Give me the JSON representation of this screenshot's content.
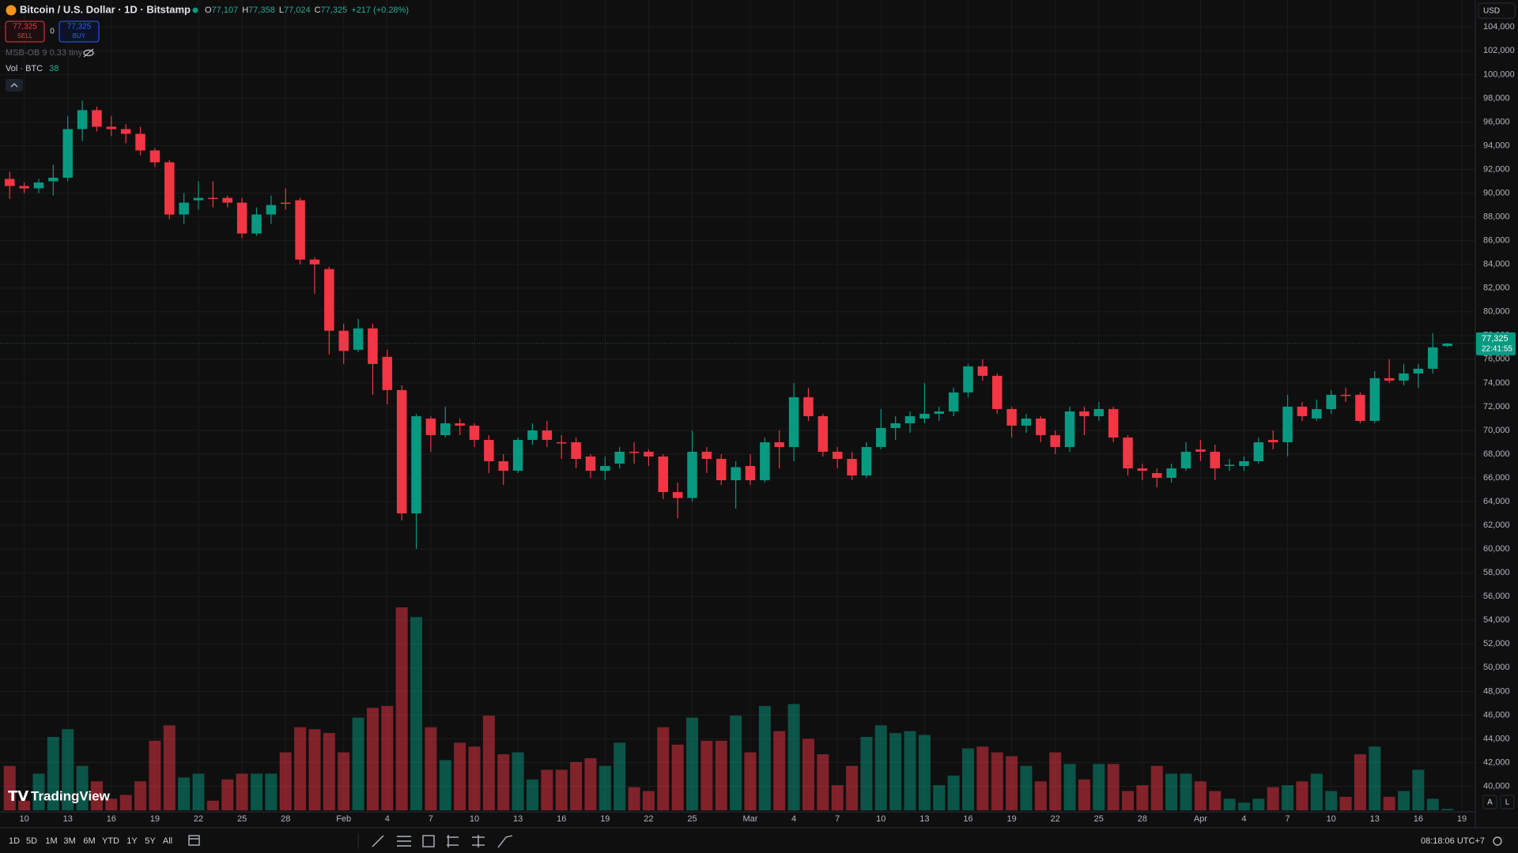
{
  "header": {
    "symbol": "Bitcoin / U.S. Dollar · 1D · Bitstamp",
    "ohlc": [
      {
        "key": "O",
        "text": "77,107"
      },
      {
        "key": "H",
        "text": "77,358"
      },
      {
        "key": "L",
        "text": "77,024"
      },
      {
        "key": "C",
        "text": "77,325"
      }
    ],
    "change": "+217 (+0.28%)",
    "sell_price": "77,325",
    "sell": "SELL",
    "spread": "0",
    "buy_price": "77,325",
    "buy": "BUY",
    "indicator": "MSB-OB 9 0.33 tiny",
    "currency": "USD"
  },
  "chart_data": {
    "type": "candlestick",
    "up_color": "#089981",
    "down_color": "#f23645",
    "grid": true,
    "categories": [
      null,
      "10",
      null,
      null,
      "13",
      null,
      null,
      "16",
      null,
      null,
      "19",
      null,
      null,
      "22",
      null,
      null,
      "25",
      null,
      null,
      "28",
      null,
      null,
      null,
      "Feb",
      null,
      null,
      "4",
      null,
      null,
      "7",
      null,
      null,
      "10",
      null,
      null,
      "13",
      null,
      null,
      "16",
      null,
      null,
      "19",
      null,
      null,
      "22",
      null,
      null,
      "25",
      null,
      null,
      null,
      "Mar",
      null,
      null,
      "4",
      null,
      null,
      "7",
      null,
      null,
      "10",
      null,
      null,
      "13",
      null,
      null,
      "16",
      null,
      null,
      "19",
      null,
      null,
      "22",
      null,
      null,
      "25",
      null,
      null,
      "28",
      null,
      null,
      null,
      "Apr",
      null,
      null,
      "4",
      null,
      null,
      "7",
      null,
      null,
      "10",
      null,
      null,
      "13",
      null,
      null,
      "16",
      null,
      null
    ],
    "future_categories": [
      "19"
    ],
    "ohlc": {
      "open": [
        91200,
        90600,
        90400,
        91000,
        91300,
        95400,
        97000,
        95600,
        95400,
        95000,
        93600,
        92600,
        88200,
        89400,
        89600,
        89600,
        89200,
        86600,
        88200,
        89200,
        89400,
        84400,
        83600,
        78400,
        76800,
        78600,
        76200,
        73400,
        63000,
        71000,
        69600,
        70600,
        70400,
        69200,
        67400,
        66600,
        69200,
        70000,
        69000,
        69000,
        67800,
        66600,
        67200,
        68200,
        68200,
        67800,
        64800,
        64300,
        68200,
        67600,
        65800,
        67000,
        65800,
        69000,
        68600,
        72800,
        71200,
        68200,
        67600,
        66200,
        68600,
        70200,
        70600,
        71000,
        71400,
        71600,
        73200,
        75400,
        74600,
        71800,
        70400,
        71000,
        69600,
        68600,
        71600,
        71200,
        71800,
        69400,
        66800,
        66400,
        66000,
        66800,
        68400,
        68200,
        67000,
        67000,
        67400,
        69200,
        69000,
        72000,
        71000,
        71800,
        73000,
        73000,
        70800,
        74400,
        74200,
        74800,
        75200,
        77107
      ],
      "high": [
        91800,
        90900,
        91200,
        92400,
        96500,
        97800,
        97300,
        96500,
        95800,
        95600,
        93800,
        92800,
        90000,
        91000,
        91000,
        89800,
        89600,
        88800,
        89800,
        90400,
        89600,
        84600,
        83800,
        79000,
        79400,
        79000,
        76800,
        73800,
        71400,
        71200,
        72000,
        71000,
        70600,
        69600,
        68000,
        69400,
        70600,
        70800,
        69600,
        69400,
        68000,
        67800,
        68600,
        69000,
        68400,
        68000,
        65600,
        70000,
        68600,
        68000,
        67400,
        68000,
        69400,
        70000,
        74000,
        73600,
        71400,
        68600,
        68200,
        69000,
        71800,
        71200,
        71600,
        74000,
        72000,
        73600,
        75600,
        76000,
        74800,
        72000,
        71400,
        71200,
        70000,
        72000,
        72000,
        72400,
        72000,
        69600,
        67200,
        66800,
        67200,
        69000,
        69200,
        68800,
        67600,
        67800,
        69400,
        70000,
        73000,
        72400,
        72600,
        73400,
        73600,
        73200,
        75000,
        76000,
        75600,
        75600,
        78200,
        77358
      ],
      "low": [
        89500,
        90000,
        90000,
        89800,
        91000,
        94400,
        95200,
        94800,
        94200,
        93200,
        92200,
        87800,
        87400,
        88600,
        88800,
        88800,
        86200,
        86400,
        87400,
        88600,
        84000,
        81500,
        76400,
        75600,
        76600,
        73000,
        72200,
        62400,
        60000,
        68200,
        69400,
        69600,
        68600,
        66400,
        65400,
        66400,
        68800,
        68600,
        67600,
        66800,
        66000,
        65800,
        66800,
        67200,
        67000,
        64200,
        62600,
        64000,
        66400,
        65400,
        63400,
        65400,
        65600,
        66800,
        67400,
        70800,
        67800,
        66800,
        65800,
        66000,
        68400,
        69200,
        69800,
        70600,
        70800,
        71200,
        72800,
        74200,
        71400,
        69400,
        69800,
        69000,
        68000,
        68200,
        69600,
        70800,
        69000,
        66200,
        65800,
        65200,
        65600,
        66600,
        67400,
        65800,
        66600,
        66600,
        67200,
        68400,
        67800,
        70800,
        70800,
        71400,
        72400,
        70600,
        70600,
        74000,
        73800,
        73600,
        74800,
        77024
      ],
      "close": [
        90600,
        90400,
        90900,
        91300,
        95400,
        97000,
        95600,
        95400,
        95000,
        93600,
        92600,
        88200,
        89200,
        89600,
        89500,
        89200,
        86600,
        88200,
        89000,
        89100,
        84400,
        84000,
        78400,
        76700,
        78600,
        75600,
        73400,
        63000,
        71200,
        69600,
        70600,
        70400,
        69200,
        67400,
        66600,
        69200,
        70000,
        69200,
        68900,
        67600,
        66600,
        67000,
        68200,
        68100,
        67800,
        64800,
        64300,
        68200,
        67600,
        65800,
        66900,
        65800,
        69000,
        68600,
        72800,
        71200,
        68200,
        67600,
        66200,
        68600,
        70200,
        70600,
        71200,
        71400,
        71600,
        73200,
        75400,
        74600,
        71800,
        70400,
        71000,
        69600,
        68600,
        71600,
        71200,
        71800,
        69400,
        66800,
        66600,
        66000,
        66800,
        68200,
        68200,
        66800,
        67100,
        67400,
        69000,
        69000,
        72000,
        71200,
        71800,
        73000,
        72900,
        70800,
        74400,
        74200,
        74800,
        75200,
        77000,
        77325
      ]
    },
    "volume": {
      "name": "Vol · BTC",
      "values": [
        1150,
        250,
        950,
        1900,
        2100,
        1150,
        750,
        300,
        400,
        750,
        1800,
        2200,
        850,
        950,
        250,
        800,
        950,
        950,
        950,
        1500,
        2150,
        2100,
        2000,
        1500,
        2400,
        2650,
        2700,
        5250,
        5000,
        2150,
        1300,
        1750,
        1650,
        2450,
        1450,
        1500,
        800,
        1050,
        1050,
        1250,
        1350,
        1150,
        1750,
        600,
        500,
        2150,
        1700,
        2400,
        1800,
        1800,
        2450,
        1500,
        2700,
        2050,
        2750,
        1850,
        1450,
        650,
        1150,
        1900,
        2200,
        2000,
        2050,
        1950,
        650,
        900,
        1600,
        1650,
        1500,
        1400,
        1150,
        750,
        1500,
        1200,
        800,
        1200,
        1200,
        500,
        650,
        1150,
        950,
        950,
        750,
        500,
        300,
        200,
        300,
        600,
        650,
        750,
        950,
        500,
        350,
        1450,
        1650,
        350,
        500,
        1050,
        300,
        38
      ]
    },
    "ylim": [
      40000,
      104000
    ],
    "yticks": [
      {
        "value": 40000,
        "label": "40,000"
      },
      {
        "value": 42000,
        "label": "42,000"
      },
      {
        "value": 44000,
        "label": "44,000"
      },
      {
        "value": 46000,
        "label": "46,000"
      },
      {
        "value": 48000,
        "label": "48,000"
      },
      {
        "value": 50000,
        "label": "50,000"
      },
      {
        "value": 52000,
        "label": "52,000"
      },
      {
        "value": 54000,
        "label": "54,000"
      },
      {
        "value": 56000,
        "label": "56,000"
      },
      {
        "value": 58000,
        "label": "58,000"
      },
      {
        "value": 60000,
        "label": "60,000"
      },
      {
        "value": 62000,
        "label": "62,000"
      },
      {
        "value": 64000,
        "label": "64,000"
      },
      {
        "value": 66000,
        "label": "66,000"
      },
      {
        "value": 68000,
        "label": "68,000"
      },
      {
        "value": 70000,
        "label": "70,000"
      },
      {
        "value": 72000,
        "label": "72,000"
      },
      {
        "value": 74000,
        "label": "74,000"
      },
      {
        "value": 76000,
        "label": "76,000"
      },
      {
        "value": 78000,
        "label": "78,000"
      },
      {
        "value": 80000,
        "label": "80,000"
      },
      {
        "value": 82000,
        "label": "82,000"
      },
      {
        "value": 84000,
        "label": "84,000"
      },
      {
        "value": 86000,
        "label": "86,000"
      },
      {
        "value": 88000,
        "label": "88,000"
      },
      {
        "value": 90000,
        "label": "90,000"
      },
      {
        "value": 92000,
        "label": "92,000"
      },
      {
        "value": 94000,
        "label": "94,000"
      },
      {
        "value": 96000,
        "label": "96,000"
      },
      {
        "value": 98000,
        "label": "98,000"
      },
      {
        "value": 100000,
        "label": "100,000"
      },
      {
        "value": 102000,
        "label": "102,000"
      },
      {
        "value": 104000,
        "label": "104,000"
      }
    ],
    "last_price": {
      "value": 77325,
      "label": "77,325"
    },
    "countdown": "22:41:55"
  },
  "toolbar": {
    "ranges": [
      "1D",
      "5D",
      "1M",
      "3M",
      "6M",
      "YTD",
      "1Y",
      "5Y",
      "All"
    ],
    "clock": "08:18:06 UTC+7",
    "scale_buttons": [
      "A",
      "L"
    ],
    "brand": "TradingView"
  }
}
